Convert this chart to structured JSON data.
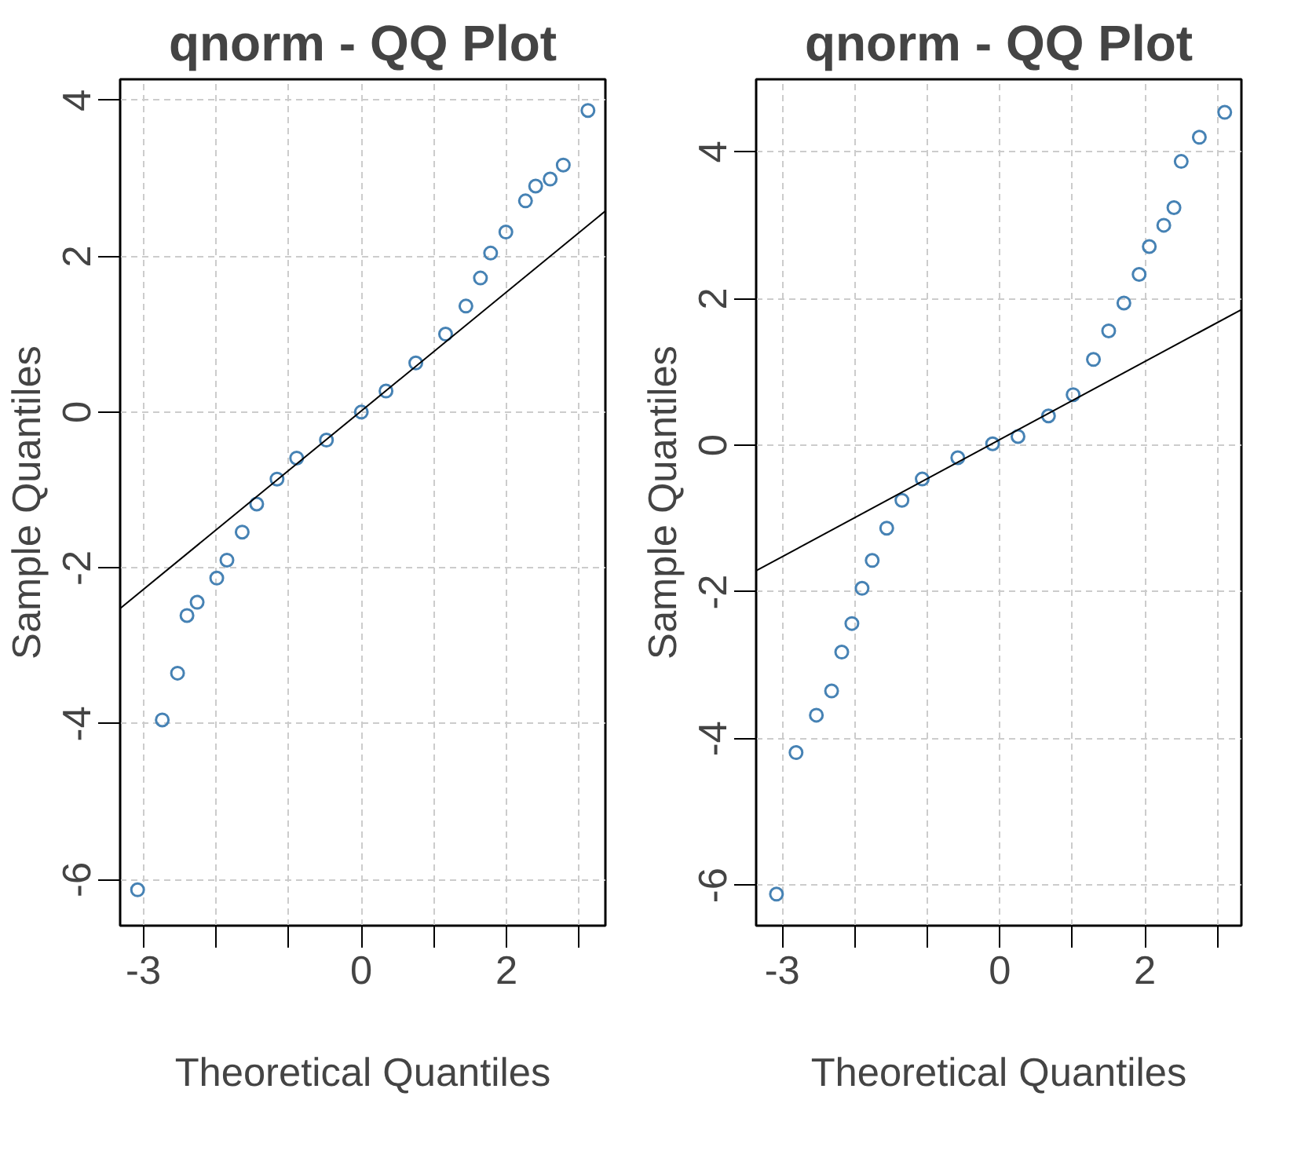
{
  "chart_data": [
    {
      "type": "scatter",
      "title": "qnorm - QQ Plot",
      "xlabel": "Theoretical Quantiles",
      "ylabel": "Sample Quantiles",
      "xlim": [
        -3.32,
        3.36
      ],
      "ylim": [
        -6.59,
        4.27
      ],
      "xticks": [
        -3,
        {
          "value": -2,
          "label": null
        },
        {
          "value": -1,
          "label": null
        },
        0,
        {
          "value": 1,
          "label": null
        },
        2,
        {
          "value": 3,
          "label": null
        }
      ],
      "yticks": [
        -6,
        -4,
        -2,
        0,
        2,
        4
      ],
      "grid": true,
      "series": [
        {
          "type": "scatter",
          "marker": "circle",
          "color": "#4682b4",
          "x": [
            -3.08,
            -2.74,
            -2.53,
            -2.4,
            -2.26,
            -1.99,
            -1.85,
            -1.64,
            -1.44,
            -1.16,
            -0.89,
            -0.48,
            0,
            0.34,
            0.75,
            1.16,
            1.44,
            1.64,
            1.78,
            1.99,
            2.26,
            2.4,
            2.6,
            2.78,
            3.12
          ],
          "values": [
            -6.13,
            -3.95,
            -3.35,
            -2.61,
            -2.44,
            -2.13,
            -1.9,
            -1.54,
            -1.18,
            -0.86,
            -0.59,
            -0.36,
            0,
            0.27,
            0.63,
            1.0,
            1.36,
            1.72,
            2.04,
            2.31,
            2.71,
            2.9,
            2.99,
            3.17,
            3.87
          ]
        },
        {
          "type": "line",
          "marker": "none",
          "color": "#000000",
          "x": [
            -3.32,
            3.36
          ],
          "values": [
            -2.52,
            2.58
          ]
        }
      ]
    },
    {
      "type": "scatter",
      "title": "qnorm - QQ Plot",
      "xlabel": "Theoretical Quantiles",
      "ylabel": "Sample Quantiles",
      "xlim": [
        -3.36,
        3.33
      ],
      "ylim": [
        -6.55,
        4.99
      ],
      "xticks": [
        -3,
        {
          "value": -2,
          "label": null
        },
        {
          "value": -1,
          "label": null
        },
        0,
        {
          "value": 1,
          "label": null
        },
        2,
        {
          "value": 3,
          "label": null
        }
      ],
      "yticks": [
        -6,
        -4,
        -2,
        0,
        2,
        4
      ],
      "grid": true,
      "series": [
        {
          "type": "scatter",
          "marker": "circle",
          "color": "#4682b4",
          "x": [
            -3.08,
            -2.81,
            -2.53,
            -2.32,
            -2.18,
            -2.04,
            -1.9,
            -1.76,
            -1.56,
            -1.35,
            -1.07,
            -0.58,
            -0.1,
            0.25,
            0.67,
            1.01,
            1.29,
            1.5,
            1.71,
            1.92,
            2.06,
            2.26,
            2.4,
            2.5,
            2.75,
            3.1
          ],
          "values": [
            -6.12,
            -4.19,
            -3.68,
            -3.35,
            -2.82,
            -2.43,
            -1.95,
            -1.57,
            -1.13,
            -0.75,
            -0.46,
            -0.17,
            0.02,
            0.12,
            0.4,
            0.69,
            1.17,
            1.56,
            1.94,
            2.33,
            2.71,
            3.0,
            3.24,
            3.87,
            4.2,
            4.54
          ]
        },
        {
          "type": "line",
          "marker": "none",
          "color": "#000000",
          "x": [
            -3.36,
            3.33
          ],
          "values": [
            -1.71,
            1.85
          ]
        }
      ]
    }
  ]
}
